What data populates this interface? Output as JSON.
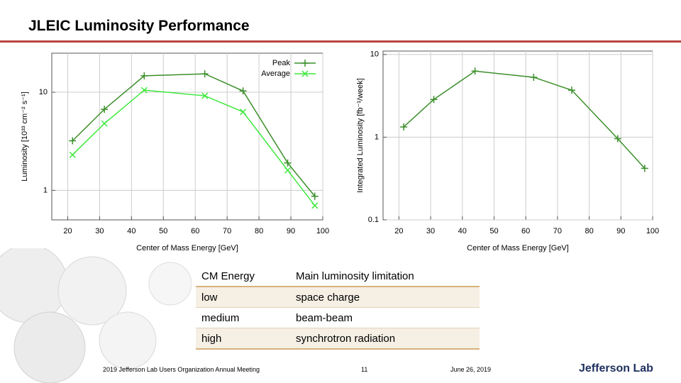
{
  "title": "JLEIC Luminosity Performance",
  "chart_data": [
    {
      "type": "line",
      "ylabel": "Luminosity [10³³ cm⁻² s⁻¹]",
      "xlabel": "Center of Mass Energy [GeV]",
      "x": [
        21.5,
        31.5,
        44,
        63,
        75,
        89,
        97.5
      ],
      "series": [
        {
          "name": "Peak",
          "color": "#3b8f2a",
          "marker": "plus",
          "values": [
            3.2,
            6.7,
            14.7,
            15.4,
            10.3,
            1.9,
            0.87
          ]
        },
        {
          "name": "Average",
          "color": "#3fe83f",
          "marker": "x",
          "values": [
            2.3,
            4.8,
            10.5,
            9.2,
            6.3,
            1.6,
            0.7
          ]
        }
      ],
      "xlim": [
        15,
        100
      ],
      "ylim": [
        0.5,
        25
      ],
      "xticks": [
        20,
        30,
        40,
        50,
        60,
        70,
        80,
        90,
        100
      ],
      "yticks": [
        1,
        10
      ],
      "log_y": true,
      "grid": true,
      "legend": "upper right"
    },
    {
      "type": "line",
      "ylabel": "Integrated Luminosity [fb⁻¹/week]",
      "xlabel": "Center of Mass Energy [GeV]",
      "x": [
        21.5,
        31,
        44,
        62.5,
        74.5,
        89,
        97.5
      ],
      "series": [
        {
          "color": "#3b8f2a",
          "marker": "plus",
          "values": [
            1.33,
            2.86,
            6.3,
            5.3,
            3.7,
            0.96,
            0.42
          ]
        }
      ],
      "xlim": [
        15,
        100
      ],
      "ylim": [
        0.1,
        11
      ],
      "xticks": [
        20,
        30,
        40,
        50,
        60,
        70,
        80,
        90,
        100
      ],
      "yticks": [
        0.1,
        1,
        10
      ],
      "log_y": true,
      "grid": true
    }
  ],
  "table": {
    "header": [
      "CM Energy",
      "Main luminosity limitation"
    ],
    "rows": [
      [
        "low",
        "space charge"
      ],
      [
        "medium",
        "beam-beam"
      ],
      [
        "high",
        "synchrotron radiation"
      ]
    ]
  },
  "footer": {
    "event": "2019 Jefferson Lab Users Organization Annual Meeting",
    "page": "11",
    "date": "June 26, 2019",
    "logo": "Jefferson Lab"
  }
}
